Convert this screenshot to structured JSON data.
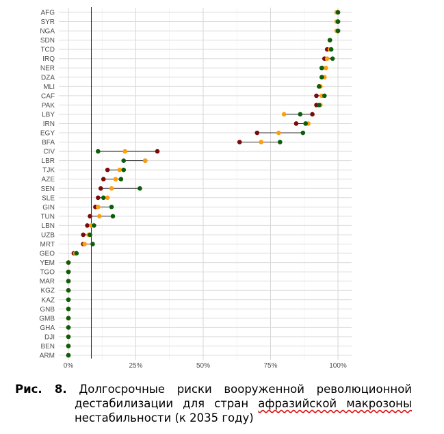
{
  "chart_data": {
    "type": "dot",
    "categories": [
      "AFG",
      "SYR",
      "NGA",
      "SDN",
      "TCD",
      "IRQ",
      "NER",
      "DZA",
      "MLI",
      "CAF",
      "PAK",
      "LBY",
      "IRN",
      "EGY",
      "BFA",
      "CIV",
      "LBR",
      "TJK",
      "AZE",
      "SEN",
      "SLE",
      "GIN",
      "TUN",
      "LBN",
      "UZB",
      "MRT",
      "GEO",
      "YEM",
      "TGO",
      "MAR",
      "KGZ",
      "KAZ",
      "GNB",
      "GMB",
      "GHA",
      "DJI",
      "BEN",
      "ARM"
    ],
    "series": [
      {
        "color": "#7b0a0a",
        "values": [
          100,
          100,
          100,
          97,
          96,
          95,
          94,
          94,
          93,
          92,
          92,
          90.5,
          84.5,
          70,
          63.5,
          33,
          28.5,
          14.5,
          13,
          12,
          11,
          10,
          8,
          7,
          5.5,
          5.5,
          2,
          0,
          0,
          0,
          0,
          0,
          0,
          0,
          0,
          0,
          0,
          0
        ]
      },
      {
        "color": "#ff9e0d",
        "values": [
          99.5,
          99.5,
          99.5,
          97,
          97,
          96,
          95.5,
          95,
          93.5,
          94,
          93.5,
          80,
          89,
          78,
          71.5,
          21,
          28.5,
          19,
          17.5,
          16,
          14.5,
          11,
          11.5,
          8.5,
          7.5,
          6,
          2.5,
          0,
          0,
          0,
          0,
          0,
          0,
          0,
          0,
          0,
          0,
          0
        ]
      },
      {
        "color": "#0b5e0b",
        "values": [
          100,
          100,
          100,
          97,
          97.5,
          98,
          94,
          94,
          93,
          95,
          93,
          86,
          88,
          87,
          78.5,
          11,
          20.5,
          20.5,
          19.5,
          26.5,
          13,
          16,
          16.5,
          9.5,
          8,
          9,
          3,
          0,
          0,
          0,
          0,
          0,
          0,
          0,
          0,
          0,
          0,
          0
        ]
      }
    ],
    "x_ticks": [
      "0%",
      "25%",
      "50%",
      "75%",
      "100%"
    ],
    "xlim": [
      0,
      100
    ],
    "reference_line_x": 8.5,
    "grid": true,
    "legend": "none"
  },
  "caption": {
    "lead": "Рис. 8.",
    "line1": "Долгосрочные риски вооруженной революционной",
    "line2_a": "дестабилизации для стран ",
    "line2_b": "афразийской макрозоны",
    "line3": "нестабильности (к 2035 году)"
  }
}
